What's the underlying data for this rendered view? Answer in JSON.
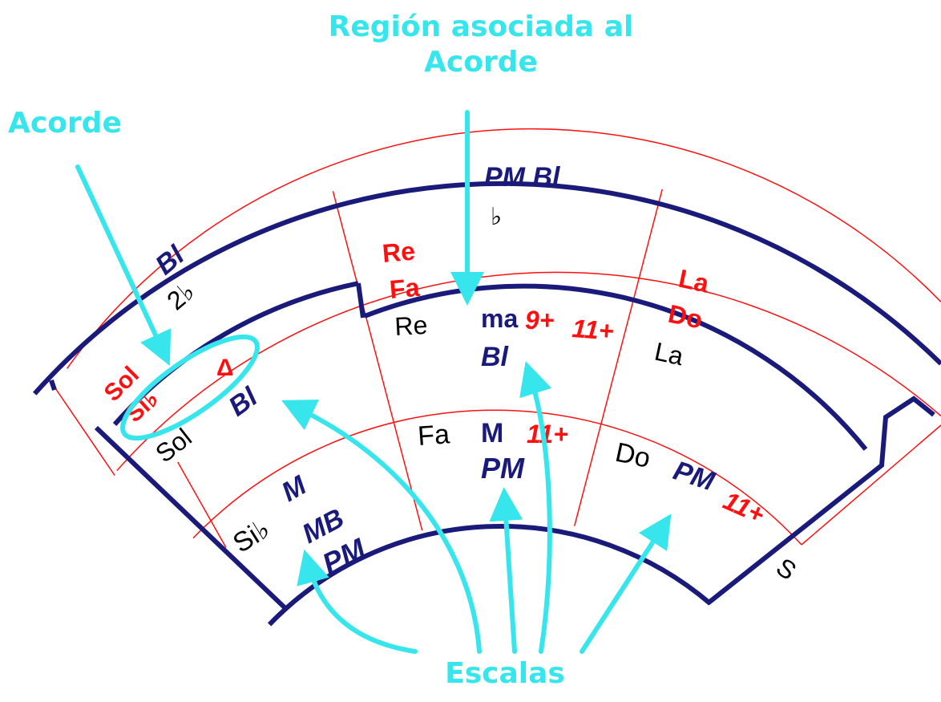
{
  "annotations": {
    "region_title_line1": "Región asociada al",
    "region_title_line2": "Acorde",
    "chord": "Acorde",
    "scales": "Escalas"
  },
  "colors": {
    "annotation": "#37e6ec",
    "ring": "#1a1a7a",
    "grid": "#ff1010",
    "note": "#000000",
    "accent": "#ff1010"
  },
  "labels": {
    "top_cut_scale": "PM Bl",
    "top_flat": "♭",
    "left_cut_scale": "Bl",
    "left_key_sig": "2♭",
    "sector1": {
      "chord_root_top": "Sol",
      "chord_root_bottom": "Si♭",
      "chord_quality": "Δ",
      "chord_scale": "Bl",
      "inner_note": "Sol",
      "outer_note": "Si♭",
      "scale_1": "M",
      "scale_2": "MB",
      "scale_3": "PM"
    },
    "sector2": {
      "region_top": "Re",
      "region_bottom": "Fa",
      "chord_root": "Re",
      "chord_quality": "ma",
      "ext_1": "9+",
      "ext_2": "11+",
      "chord_scale": "Bl",
      "inner_note": "Fa",
      "inner_scale": "M",
      "inner_ext": "11+",
      "inner_scale_2": "PM"
    },
    "sector3": {
      "region_top": "La",
      "region_bottom": "Do",
      "chord_root": "La",
      "inner_note": "Do",
      "inner_scale": "PM",
      "inner_ext": "11+"
    },
    "sector4": {
      "cut_label": "S"
    }
  }
}
